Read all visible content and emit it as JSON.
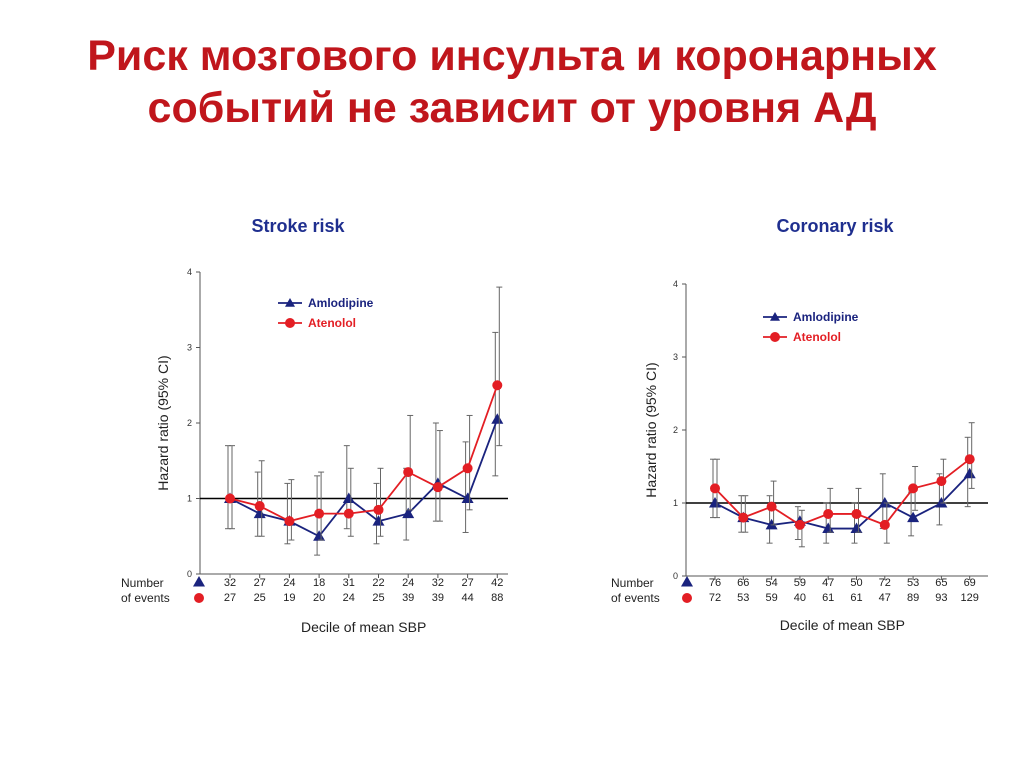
{
  "slide": {
    "title_line1": "Риск мозгового инсульта и коронарных",
    "title_line2": "событий не зависит от уровня АД"
  },
  "colors": {
    "amlodipine": "#1a237e",
    "atenolol": "#e31e24",
    "title": "#c0161c",
    "panel_title": "#1f2f8f"
  },
  "chart_data": [
    {
      "type": "line",
      "title": "Stroke risk",
      "xlabel": "Decile of mean SBP",
      "ylabel": "Hazard  ratio (95% CI)",
      "ylim": [
        0,
        4
      ],
      "yticks": [
        0,
        1,
        2,
        3,
        4
      ],
      "reference_line": 1,
      "legend_position": "top-center",
      "events_label_line1": "Number",
      "events_label_line2": "of events",
      "x": [
        1,
        2,
        3,
        4,
        5,
        6,
        7,
        8,
        9,
        10
      ],
      "series": [
        {
          "name": "Amlodipine",
          "marker": "triangle",
          "values": [
            1.0,
            0.8,
            0.7,
            0.5,
            1.0,
            0.7,
            0.8,
            1.2,
            1.0,
            2.05
          ],
          "ci_low": [
            0.6,
            0.5,
            0.4,
            0.25,
            0.6,
            0.4,
            0.45,
            0.7,
            0.55,
            1.3
          ],
          "ci_high": [
            1.7,
            1.35,
            1.2,
            1.3,
            1.7,
            1.2,
            1.4,
            2.0,
            1.75,
            3.2
          ],
          "events": [
            "32",
            "27",
            "24",
            "18",
            "31",
            "22",
            "24",
            "32",
            "27",
            "42"
          ]
        },
        {
          "name": "Atenolol",
          "marker": "circle",
          "values": [
            1.0,
            0.9,
            0.7,
            0.8,
            0.8,
            0.85,
            1.35,
            1.15,
            1.4,
            2.5
          ],
          "ci_low": [
            0.6,
            0.5,
            0.45,
            0.45,
            0.5,
            0.5,
            0.85,
            0.7,
            0.85,
            1.7
          ],
          "ci_high": [
            1.7,
            1.5,
            1.25,
            1.35,
            1.4,
            1.4,
            2.1,
            1.9,
            2.1,
            3.8
          ],
          "events": [
            "27",
            "25",
            "19",
            "20",
            "24",
            "25",
            "39",
            "39",
            "44",
            "88"
          ]
        }
      ]
    },
    {
      "type": "line",
      "title": "Coronary risk",
      "xlabel": "Decile of mean SBP",
      "ylabel": "Hazard  ratio (95% CI)",
      "ylim": [
        0,
        4
      ],
      "yticks": [
        0,
        1,
        2,
        3,
        4
      ],
      "reference_line": 1,
      "legend_position": "top-center",
      "events_label_line1": "Number",
      "events_label_line2": "of events",
      "x": [
        1,
        2,
        3,
        4,
        5,
        6,
        7,
        8,
        9,
        10
      ],
      "series": [
        {
          "name": "Amlodipine",
          "marker": "triangle",
          "values": [
            1.0,
            0.8,
            0.7,
            0.75,
            0.65,
            0.65,
            1.0,
            0.8,
            1.0,
            1.4
          ],
          "ci_low": [
            0.8,
            0.6,
            0.45,
            0.5,
            0.45,
            0.45,
            0.65,
            0.55,
            0.7,
            0.95
          ],
          "ci_high": [
            1.6,
            1.1,
            1.1,
            0.95,
            1.0,
            1.0,
            1.4,
            1.15,
            1.4,
            1.9
          ],
          "events": [
            "76",
            "66",
            "54",
            "59",
            "47",
            "50",
            "72",
            "53",
            "65",
            "69"
          ]
        },
        {
          "name": "Atenolol",
          "marker": "circle",
          "values": [
            1.2,
            0.8,
            0.95,
            0.7,
            0.85,
            0.85,
            0.7,
            1.2,
            1.3,
            1.6
          ],
          "ci_low": [
            0.8,
            0.6,
            0.7,
            0.4,
            0.6,
            0.6,
            0.45,
            0.9,
            1.0,
            1.2
          ],
          "ci_high": [
            1.6,
            1.1,
            1.3,
            0.9,
            1.2,
            1.2,
            1.0,
            1.5,
            1.6,
            2.1
          ],
          "events": [
            "72",
            "53",
            "59",
            "40",
            "61",
            "61",
            "47",
            "89",
            "93",
            "129"
          ]
        }
      ]
    }
  ]
}
